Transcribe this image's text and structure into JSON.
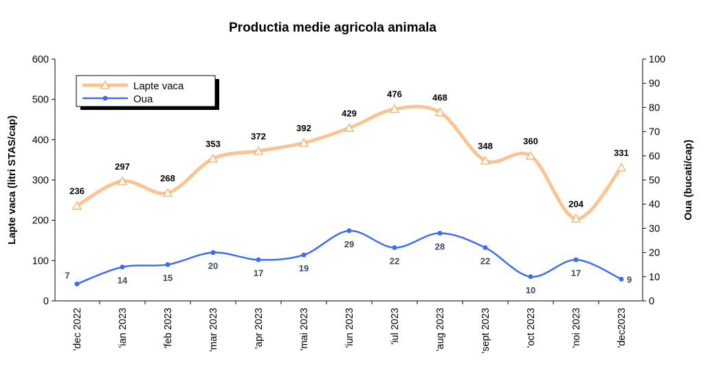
{
  "chart_data": {
    "type": "line",
    "title": "Productia medie agricola animala",
    "categories": [
      "'dec 2022",
      "'ian 2023",
      "'feb 2023",
      "'mar 2023",
      "'apr 2023",
      "'mai 2023",
      "'iun 2023",
      "'iul 2023",
      "'aug 2023",
      "'sept 2023",
      "'oct 2023",
      "'noi 2023",
      "'dec2023"
    ],
    "ylabel_left": "Lapte vaca (litri STAS/cap)",
    "ylabel_right": "Oua (bucati/cap)",
    "ylim_left": [
      0,
      600
    ],
    "ylim_right": [
      0,
      100
    ],
    "yticks_left": [
      "0",
      "100",
      "200",
      "300",
      "400",
      "500",
      "600"
    ],
    "yticks_right": [
      "0",
      "10",
      "20",
      "30",
      "40",
      "50",
      "60",
      "70",
      "80",
      "90",
      "100"
    ],
    "legend_position": "top-left",
    "grid": false,
    "series": [
      {
        "name": "Lapte vaca",
        "axis": "left",
        "color": "#f9c48f",
        "marker": "triangle",
        "values": [
          236,
          297,
          268,
          353,
          372,
          392,
          429,
          476,
          468,
          348,
          360,
          204,
          331
        ]
      },
      {
        "name": "Oua",
        "axis": "right",
        "color": "#3d6cf0",
        "marker": "dot",
        "values": [
          7,
          14,
          15,
          20,
          17,
          19,
          29,
          22,
          28,
          22,
          10,
          17,
          9
        ]
      }
    ]
  }
}
